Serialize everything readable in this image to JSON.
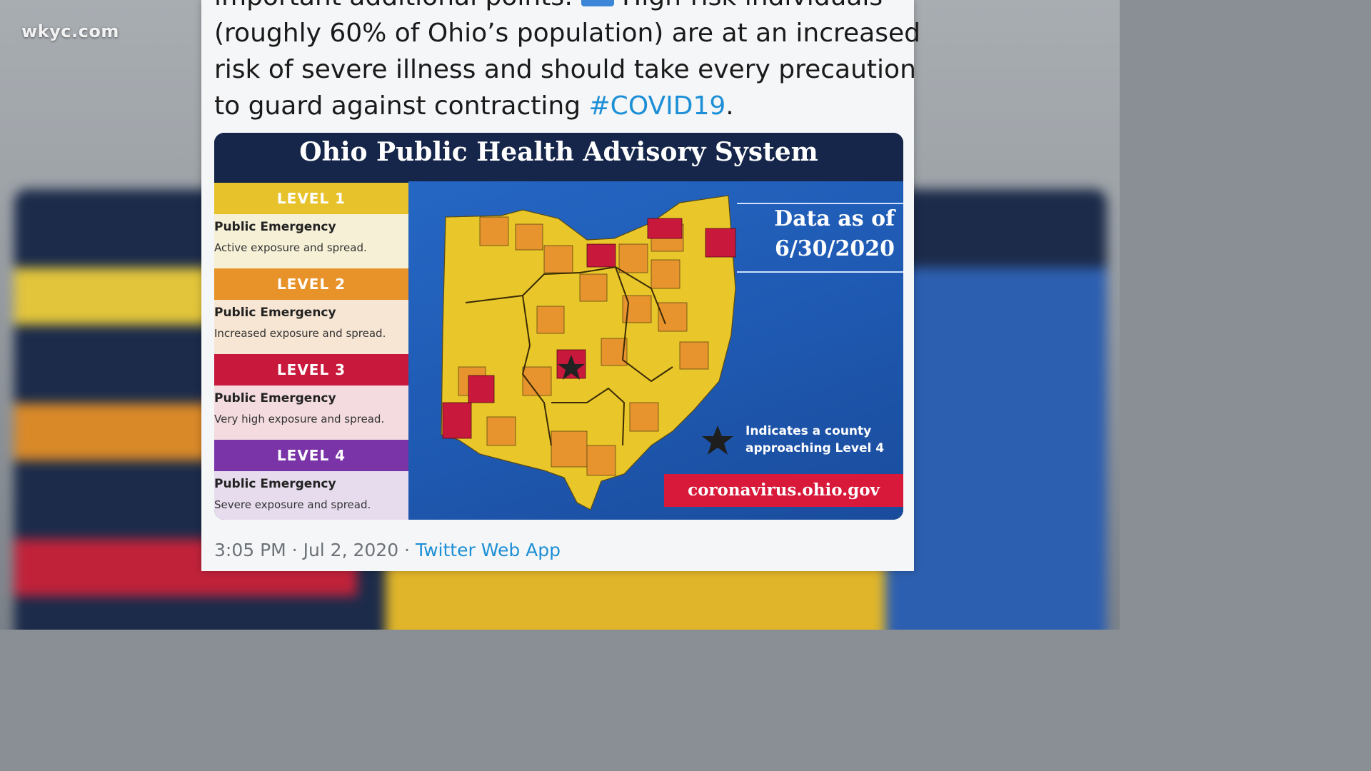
{
  "watermark": "wkyc.com",
  "tweet": {
    "lines": [
      "important additional points:",
      "High-risk individuals",
      "(roughly 60% of Ohio’s population) are at an increased",
      "risk of severe illness and should take every precaution",
      "to guard against contracting ",
      "#COVID19",
      "."
    ],
    "timestamp": "3:05 PM · Jul 2, 2020 · ",
    "source": "Twitter Web App"
  },
  "graphic": {
    "title": "Ohio Public Health Advisory System",
    "levels": [
      {
        "label": "LEVEL 1",
        "title": "Public Emergency",
        "description": "Active exposure and spread.",
        "color": "#e8c22b",
        "bg": "#f6f0d6"
      },
      {
        "label": "LEVEL 2",
        "title": "Public Emergency",
        "description": "Increased exposure and spread.",
        "color": "#e8922a",
        "bg": "#f7e6d3"
      },
      {
        "label": "LEVEL 3",
        "title": "Public Emergency",
        "description": "Very high exposure and spread.",
        "color": "#c8183b",
        "bg": "#f3dbdf"
      },
      {
        "label": "LEVEL 4",
        "title": "Public Emergency",
        "description": "Severe exposure and spread.",
        "color": "#7b34a8",
        "bg": "#e6dcee"
      }
    ],
    "data_as_of_line1": "Data as of",
    "data_as_of_line2": "6/30/2020",
    "indicator_line1": "Indicates a county",
    "indicator_line2": "approaching Level 4",
    "website": "coronavirus.ohio.gov"
  },
  "colors": {
    "level1": "#e8c22b",
    "level2": "#e8922a",
    "level3": "#c8183b",
    "level4": "#7b34a8",
    "map_bg": "#2567c4",
    "hashtag": "#1d8fd6"
  }
}
